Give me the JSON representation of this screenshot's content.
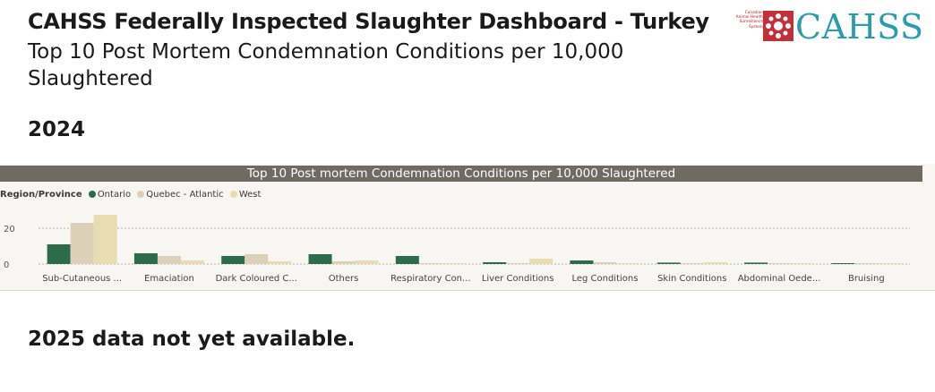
{
  "header": {
    "title": "CAHSS Federally Inspected Slaughter Dashboard - Turkey",
    "subtitle": "Top 10 Post Mortem Condemnation Conditions per 10,000 Slaughtered"
  },
  "logo": {
    "small_text": "Canadian Animal Health Surveillance System",
    "text": "CAHSS",
    "mark_color": "#c0313a",
    "text_color": "#2a9da8"
  },
  "year_label": "2024",
  "note": "2025 data not yet available.",
  "chart_data": {
    "type": "bar",
    "title": "Top 10 Post mortem Condemnation Conditions per 10,000 Slaughtered",
    "legend_title": "Region/Province",
    "legend_placement": "top-left",
    "categories": [
      "Sub-Cutaneous ...",
      "Emaciation",
      "Dark Coloured C...",
      "Others",
      "Respiratory Con...",
      "Liver Conditions",
      "Leg Conditions",
      "Skin Conditions",
      "Abdominal Oede...",
      "Bruising"
    ],
    "series": [
      {
        "name": "Ontario",
        "color": "#2e6b4a",
        "values": [
          11,
          6,
          4.5,
          5.5,
          4.5,
          1,
          2,
          0.8,
          0.8,
          0.5
        ]
      },
      {
        "name": "Quebec - Atlantic",
        "color": "#ddd0b8",
        "values": [
          23,
          4.5,
          5.5,
          1.5,
          0.5,
          0.3,
          1,
          0.3,
          0.3,
          0.2
        ]
      },
      {
        "name": "West",
        "color": "#e8dcb3",
        "values": [
          27.5,
          2,
          1.5,
          2,
          0.5,
          3,
          0.5,
          1,
          0.3,
          0.3
        ]
      }
    ],
    "y_ticks": [
      0,
      20
    ],
    "ylim": [
      0,
      28
    ],
    "grid": true
  }
}
